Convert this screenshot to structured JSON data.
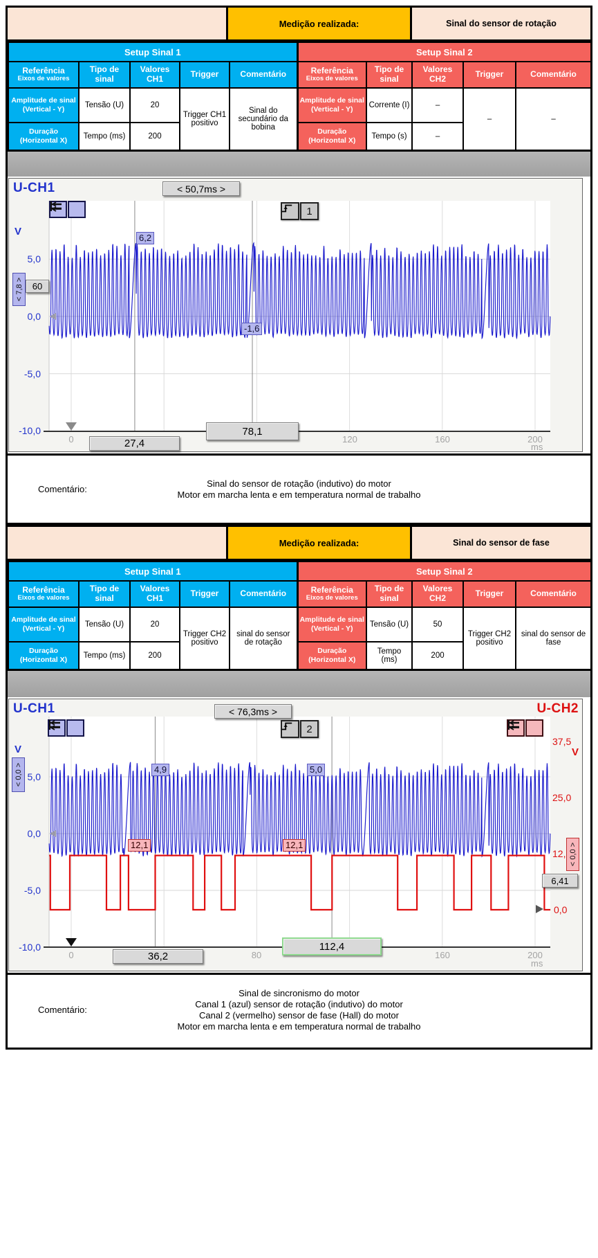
{
  "colors": {
    "accent_blue": "#00b0f0",
    "accent_red": "#f4625c",
    "accent_yellow": "#ffc000",
    "accent_cream": "#fbe5d6",
    "trace_ch1": "#1a1acc",
    "trace_ch2": "#e01010",
    "measure_box": "#d9d9d9",
    "label_lavender": "#b4b6ee",
    "label_pink": "#f8b6bb"
  },
  "blocks": [
    {
      "top_row": {
        "label": "Medição realizada:",
        "value": "Sinal do sensor de rotação"
      },
      "setups": [
        {
          "title": "Setup Sinal 1",
          "head": {
            "ref": "Referência",
            "ref_sub": "Eixos de valores",
            "tipo": "Tipo de sinal",
            "valores": "Valores CH1",
            "trigger": "Trigger",
            "comentario": "Comentário"
          },
          "rows": [
            {
              "ref": "Amplitude de sinal",
              "ref_sub": "(Vertical - Y)",
              "tipo": "Tensão (U)",
              "valor": "20"
            },
            {
              "ref": "Duração",
              "ref_sub": "(Horizontal X)",
              "tipo": "Tempo (ms)",
              "valor": "200"
            }
          ],
          "trigger": "Trigger CH1 positivo",
          "comentario": "Sinal do secundário da bobina"
        },
        {
          "title": "Setup Sinal 2",
          "head": {
            "ref": "Referência",
            "ref_sub": "Eixos de valores",
            "tipo": "Tipo de sinal",
            "valores": "Valores CH2",
            "trigger": "Trigger",
            "comentario": "Comentário"
          },
          "rows": [
            {
              "ref": "Amplitude de sinal",
              "ref_sub": "(Vertical - Y)",
              "tipo": "Corrente (I)",
              "valor": "–"
            },
            {
              "ref": "Duração",
              "ref_sub": "(Horizontal X)",
              "tipo": "Tempo (s)",
              "valor": "–"
            }
          ],
          "trigger": "–",
          "comentario": "–"
        }
      ],
      "comment": {
        "label": "Comentário:",
        "lines": [
          "Sinal do sensor de rotação (indutivo) do motor",
          "Motor em marcha lenta e em temperatura normal de trabalho"
        ]
      }
    },
    {
      "top_row": {
        "label": "Medição realizada:",
        "value": "Sinal do sensor de fase"
      },
      "setups": [
        {
          "title": "Setup Sinal 1",
          "head": {
            "ref": "Referência",
            "ref_sub": "Eixos de valores",
            "tipo": "Tipo de sinal",
            "valores": "Valores CH1",
            "trigger": "Trigger",
            "comentario": "Comentário"
          },
          "rows": [
            {
              "ref": "Amplitude de sinal",
              "ref_sub": "(Vertical - Y)",
              "tipo": "Tensão (U)",
              "valor": "20"
            },
            {
              "ref": "Duração",
              "ref_sub": "(Horizontal X)",
              "tipo": "Tempo (ms)",
              "valor": "200"
            }
          ],
          "trigger": "Trigger CH2 positivo",
          "comentario": "sinal do sensor de rotação"
        },
        {
          "title": "Setup Sinal 2",
          "head": {
            "ref": "Referência",
            "ref_sub": "Eixos de valores",
            "tipo": "Tipo de sinal",
            "valores": "Valores CH2",
            "trigger": "Trigger",
            "comentario": "Comentário"
          },
          "rows": [
            {
              "ref": "Amplitude de sinal",
              "ref_sub": "(Vertical - Y)",
              "tipo": "Tensão (U)",
              "valor": "50"
            },
            {
              "ref": "Duração",
              "ref_sub": "(Horizontal X)",
              "tipo": "Tempo (ms)",
              "valor": "200"
            }
          ],
          "trigger": "Trigger CH2 positivo",
          "comentario": "sinal do sensor de fase"
        }
      ],
      "comment": {
        "label": "Comentário:",
        "lines": [
          "Sinal de sincronismo do motor",
          "Canal 1 (azul) sensor de rotação (indutivo) do motor",
          "Canal 2 (vermelho) sensor de fase (Hall) do motor",
          "Motor em marcha lenta e em temperatura normal de trabalho"
        ]
      }
    }
  ],
  "chart_data": [
    {
      "type": "line",
      "title": "U-CH1",
      "x_unit": "ms",
      "x_range": [
        -9.5,
        206.6
      ],
      "x_ticks": [
        0,
        40,
        80,
        120,
        160,
        200
      ],
      "y_unit": "V",
      "y_ticks": [
        5,
        0,
        -5,
        -10
      ],
      "y_range": [
        -10.15,
        10.1
      ],
      "grid": true,
      "legend_position": "none",
      "cursors_ms": [
        27.4,
        78.1
      ],
      "measurements": {
        "delta_t_ms": "50,7",
        "v_at_cursor1": "6,2",
        "v_at_cursor2": "-1,6",
        "delta_v": "7,8",
        "aux_value": "60",
        "trigger_channel": 1
      },
      "series": [
        {
          "name": "CH1 sensor de rotação (indutivo)",
          "color": "#1a1acc",
          "pattern": "crank_inductive",
          "axis": "left",
          "period_ms": 1.75,
          "peak_v": 6.4,
          "trough_v": -1.9,
          "gap_period_ms": 50.7,
          "gap_first_ms": 25.0,
          "gap_len_ms": 3.0
        }
      ],
      "labels": {
        "ch1": "U-CH1",
        "delta": "< 50,7ms >",
        "v_unit": "V",
        "trig_glyph": "1",
        "yticks": [
          "5,0",
          "0,0",
          "-5,0",
          "-10,0"
        ],
        "xticks": [
          "0",
          "120",
          "160",
          "200"
        ],
        "x_unit": "ms",
        "c1v": "6,2",
        "c2v": "-1,6",
        "dv_box": "< 7,8 >",
        "aux": "60",
        "c1t": "27,4",
        "c2t": "78,1"
      }
    },
    {
      "type": "line",
      "title": "U-CH1 / U-CH2",
      "x_unit": "ms",
      "x_range": [
        -9.5,
        206.6
      ],
      "x_ticks": [
        0,
        40,
        80,
        120,
        160,
        200
      ],
      "y_unit": "V",
      "y_ticks": [
        5,
        0,
        -5,
        -10
      ],
      "y_range": [
        -9.9,
        10.3
      ],
      "y2_unit": "V",
      "y2_ticks": [
        37.5,
        25.0,
        12.5,
        0.0
      ],
      "y2_range": [
        -8.3,
        43.0
      ],
      "grid": true,
      "legend_position": "none",
      "cursors_ms": [
        36.2,
        112.4
      ],
      "measurements": {
        "delta_t_ms": "76,3",
        "ch1_at_cursor1": "4,9",
        "ch1_at_cursor2": "5,0",
        "ch2_at_cursor1": "12,1",
        "ch2_at_cursor2": "12,1",
        "delta_v_ch1": "0,0",
        "delta_v_ch2": "0,0",
        "aux_value": "6,41",
        "trigger_channel": 2
      },
      "series": [
        {
          "name": "CH1 sensor de rotação (indutivo)",
          "color": "#1a1acc",
          "pattern": "crank_inductive",
          "axis": "left",
          "period_ms": 1.75,
          "peak_v": 6.3,
          "trough_v": -2.0,
          "gap_period_ms": 51.5,
          "gap_first_ms": 22.6,
          "gap_len_ms": 3.0
        },
        {
          "name": "CH2 sensor de fase (Hall)",
          "color": "#e01010",
          "pattern": "square",
          "axis": "right",
          "high_v": 12.1,
          "low_v": 0.0,
          "low_windows_ms": [
            [
              -9.0,
              -0.6
            ],
            [
              15.2,
              21.2
            ],
            [
              24.7,
              36.2
            ],
            [
              52.5,
              57.5
            ],
            [
              64.7,
              70.6
            ],
            [
              103.4,
              112.4
            ],
            [
              140.7,
              149.0
            ],
            [
              165.0,
              172.6
            ],
            [
              181.0,
              188.5
            ],
            [
              204.0,
              206.6
            ]
          ]
        }
      ],
      "labels": {
        "ch1": "U-CH1",
        "ch2": "U-CH2",
        "delta": "< 76,3ms >",
        "v_unit": "V",
        "v_unit2": "V",
        "trig_glyph": "2",
        "yticks": [
          "5,0",
          "0,0",
          "-5,0",
          "-10,0"
        ],
        "y2ticks": [
          "37,5",
          "25,0",
          "12,5",
          "0,0"
        ],
        "xticks": [
          "0",
          "80",
          "160",
          "200"
        ],
        "x_unit": "ms",
        "c1v": "4,9",
        "c2v": "5,0",
        "c1v2": "12,1",
        "c2v2": "12,1",
        "dv_box": "< 0,0 >",
        "dv2_box": "< 0,0 >",
        "aux": "6,41",
        "c1t": "36,2",
        "c2t": "112,4"
      }
    }
  ]
}
